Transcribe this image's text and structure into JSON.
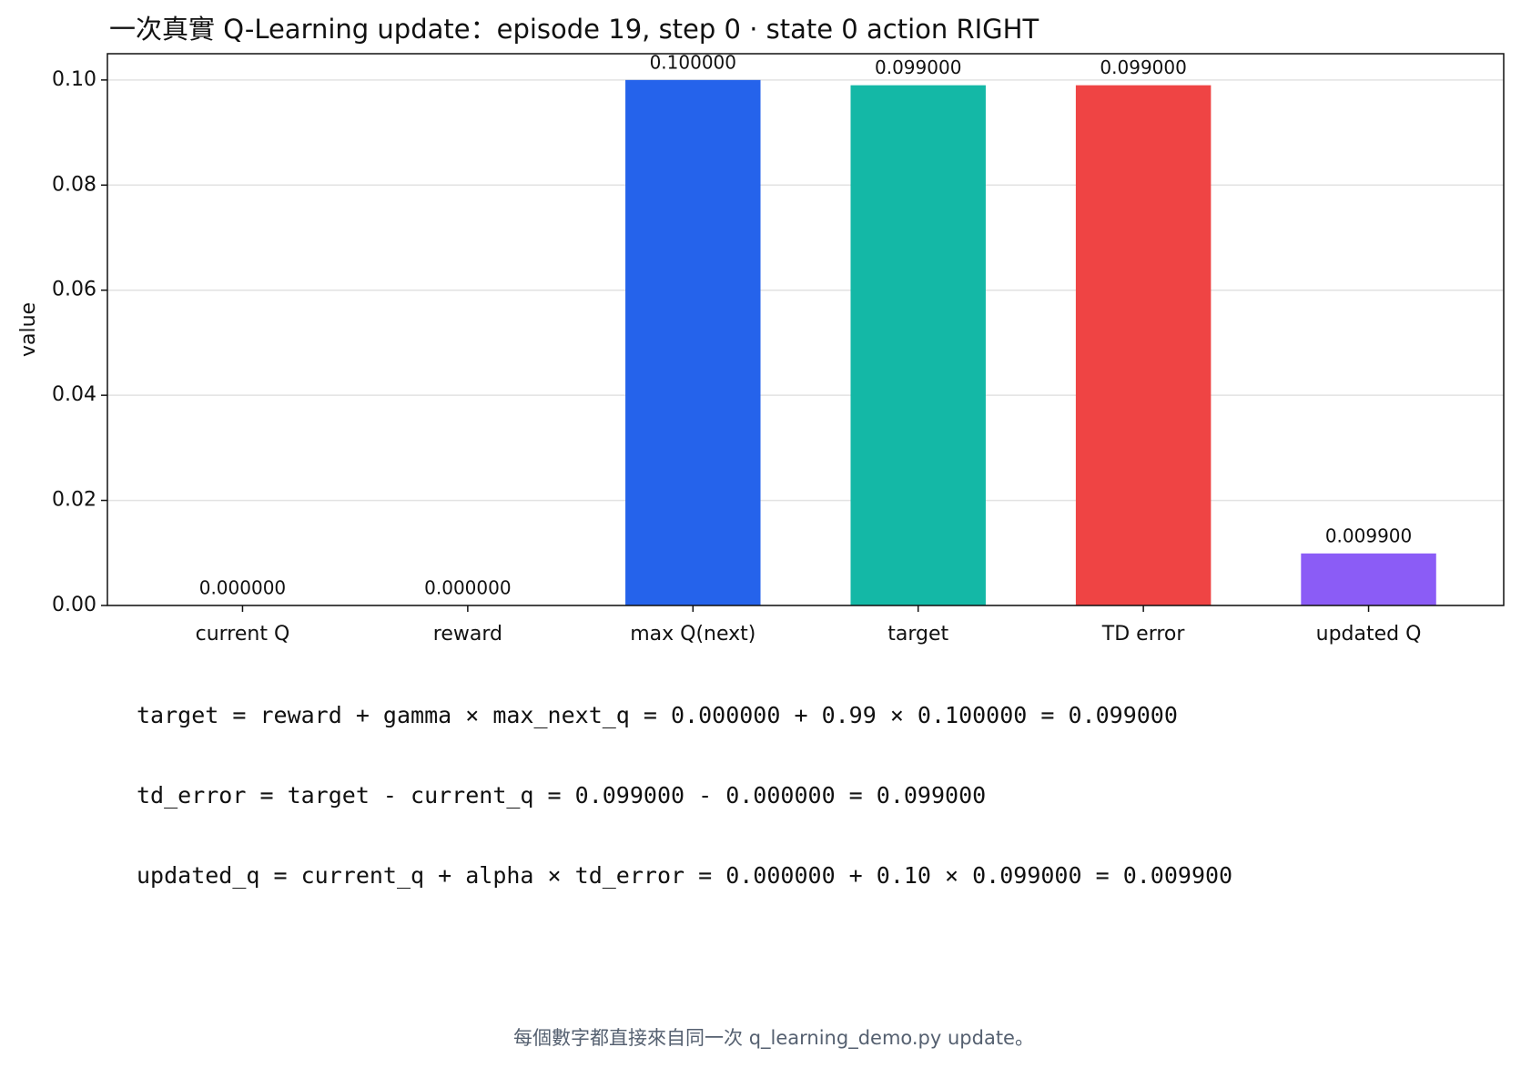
{
  "chart_data": {
    "type": "bar",
    "title": "一次真實 Q-Learning update：episode 19, step 0 · state 0 action RIGHT",
    "ylabel": "value",
    "categories": [
      "current Q",
      "reward",
      "max Q(next)",
      "target",
      "TD error",
      "updated Q"
    ],
    "values": [
      0,
      0,
      0.1,
      0.099,
      0.099,
      0.0099
    ],
    "value_labels": [
      "0.000000",
      "0.000000",
      "0.100000",
      "0.099000",
      "0.099000",
      "0.009900"
    ],
    "colors": [
      "#64748b",
      "#f59e0b",
      "#2563eb",
      "#14b8a6",
      "#ef4444",
      "#8b5cf6"
    ],
    "ylim": [
      0,
      0.105
    ],
    "yticks": [
      {
        "value": 0,
        "label": "0.00"
      },
      {
        "value": 0.02,
        "label": "0.02"
      },
      {
        "value": 0.04,
        "label": "0.04"
      },
      {
        "value": 0.06,
        "label": "0.06"
      },
      {
        "value": 0.08,
        "label": "0.08"
      },
      {
        "value": 0.1,
        "label": "0.10"
      }
    ],
    "grid": true
  },
  "formulas": [
    "target = reward + gamma × max_next_q = 0.000000 + 0.99 × 0.100000 = 0.099000",
    "td_error = target - current_q = 0.099000 - 0.000000 = 0.099000",
    "updated_q = current_q + alpha × td_error = 0.000000 + 0.10 × 0.099000 = 0.009900"
  ],
  "footnote": "每個數字都直接來自同一次 q_learning_demo.py update。"
}
